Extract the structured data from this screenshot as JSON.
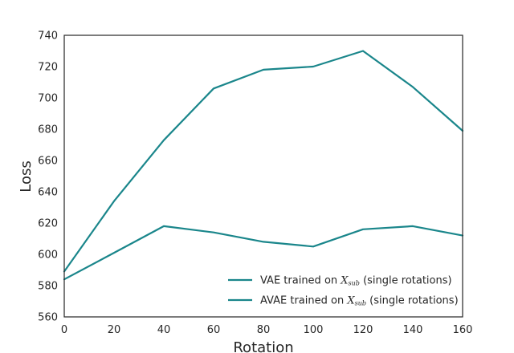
{
  "chart_data": {
    "type": "line",
    "xlabel": "Rotation",
    "ylabel": "Loss",
    "xlim": [
      0,
      160
    ],
    "ylim": [
      560,
      740
    ],
    "xticks": [
      0,
      20,
      40,
      60,
      80,
      100,
      120,
      140,
      160
    ],
    "yticks": [
      560,
      580,
      600,
      620,
      640,
      660,
      680,
      700,
      720,
      740
    ],
    "grid": false,
    "legend_position": "lower-right",
    "x": [
      0,
      20,
      40,
      60,
      80,
      100,
      120,
      140,
      160
    ],
    "series": [
      {
        "name": "VAE trained on X_sub (single rotations)",
        "name_parts": [
          "VAE trained on ",
          "X",
          "sub",
          " (single rotations)"
        ],
        "values": [
          589,
          634,
          673,
          706,
          718,
          720,
          730,
          707,
          679
        ],
        "color": "#1a868b"
      },
      {
        "name": "AVAE trained on X_sub (single rotations)",
        "name_parts": [
          "AVAE trained on ",
          "X",
          "sub",
          " (single rotations)"
        ],
        "values": [
          584,
          601,
          618,
          614,
          608,
          605,
          616,
          618,
          612
        ],
        "color": "#1a868b"
      }
    ]
  }
}
